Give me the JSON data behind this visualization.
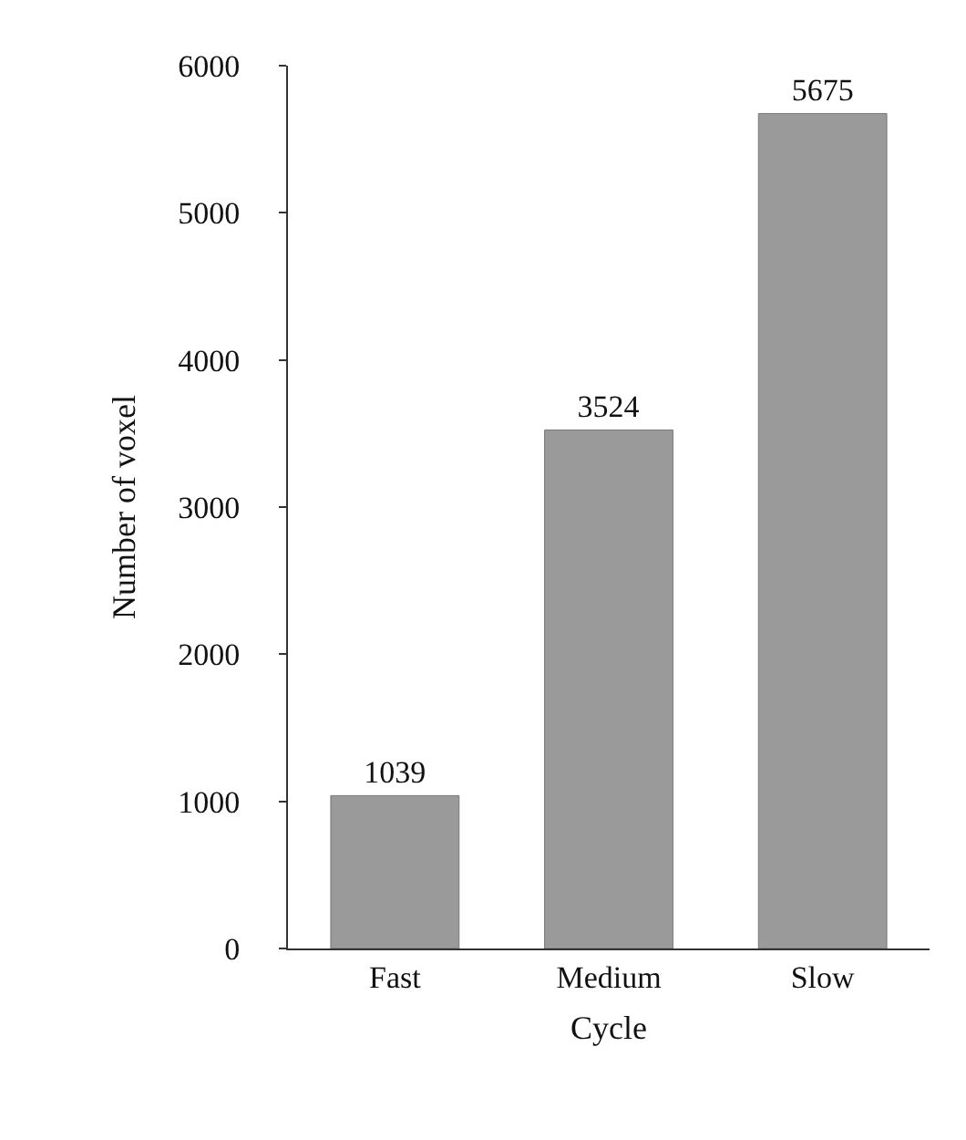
{
  "chart_data": {
    "type": "bar",
    "xlabel": "Cycle",
    "ylabel": "Number of voxel",
    "categories": [
      "Fast",
      "Medium",
      "Slow"
    ],
    "values": [
      1039,
      3524,
      5675
    ],
    "color": "#9a9a9a",
    "ylim": [
      0,
      6000
    ],
    "yticks": [
      0,
      1000,
      2000,
      3000,
      4000,
      5000,
      6000
    ],
    "data_labels": true,
    "grid": false,
    "legend": false
  }
}
